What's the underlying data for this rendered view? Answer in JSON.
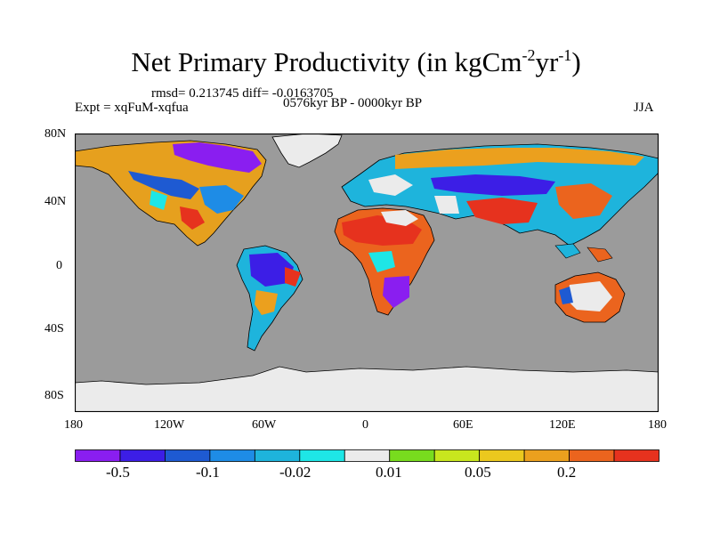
{
  "title": {
    "main": "Net Primary Productivity (in kgCm",
    "sup1": "-2",
    "mid": "yr",
    "sup2": "-1",
    "end": ")"
  },
  "stats": "rmsd= 0.213745 diff= -0.0163705",
  "experiment": "Expt = xqFuM-xqfua",
  "period": "0576kyr BP - 0000kyr BP",
  "season": "JJA",
  "lat_ticks": [
    "80N",
    "40N",
    "0",
    "40S",
    "80S"
  ],
  "lon_ticks": [
    "180",
    "120W",
    "60W",
    "0",
    "60E",
    "120E",
    "180"
  ],
  "colorbar": {
    "colors": [
      "#8a1ef0",
      "#3c1ee6",
      "#1e5ad2",
      "#1e8ce6",
      "#1eb4dc",
      "#1ee6e6",
      "#ebebeb",
      "#78dc1e",
      "#c8e61e",
      "#ebc81e",
      "#eba01e",
      "#eb641e",
      "#e6321e"
    ],
    "labels": [
      "-0.5",
      "-0.1",
      "-0.02",
      "0.01",
      "0.05",
      "0.2"
    ]
  },
  "colors": {
    "ocean": "#9b9b9b",
    "ice": "#ebebeb"
  }
}
